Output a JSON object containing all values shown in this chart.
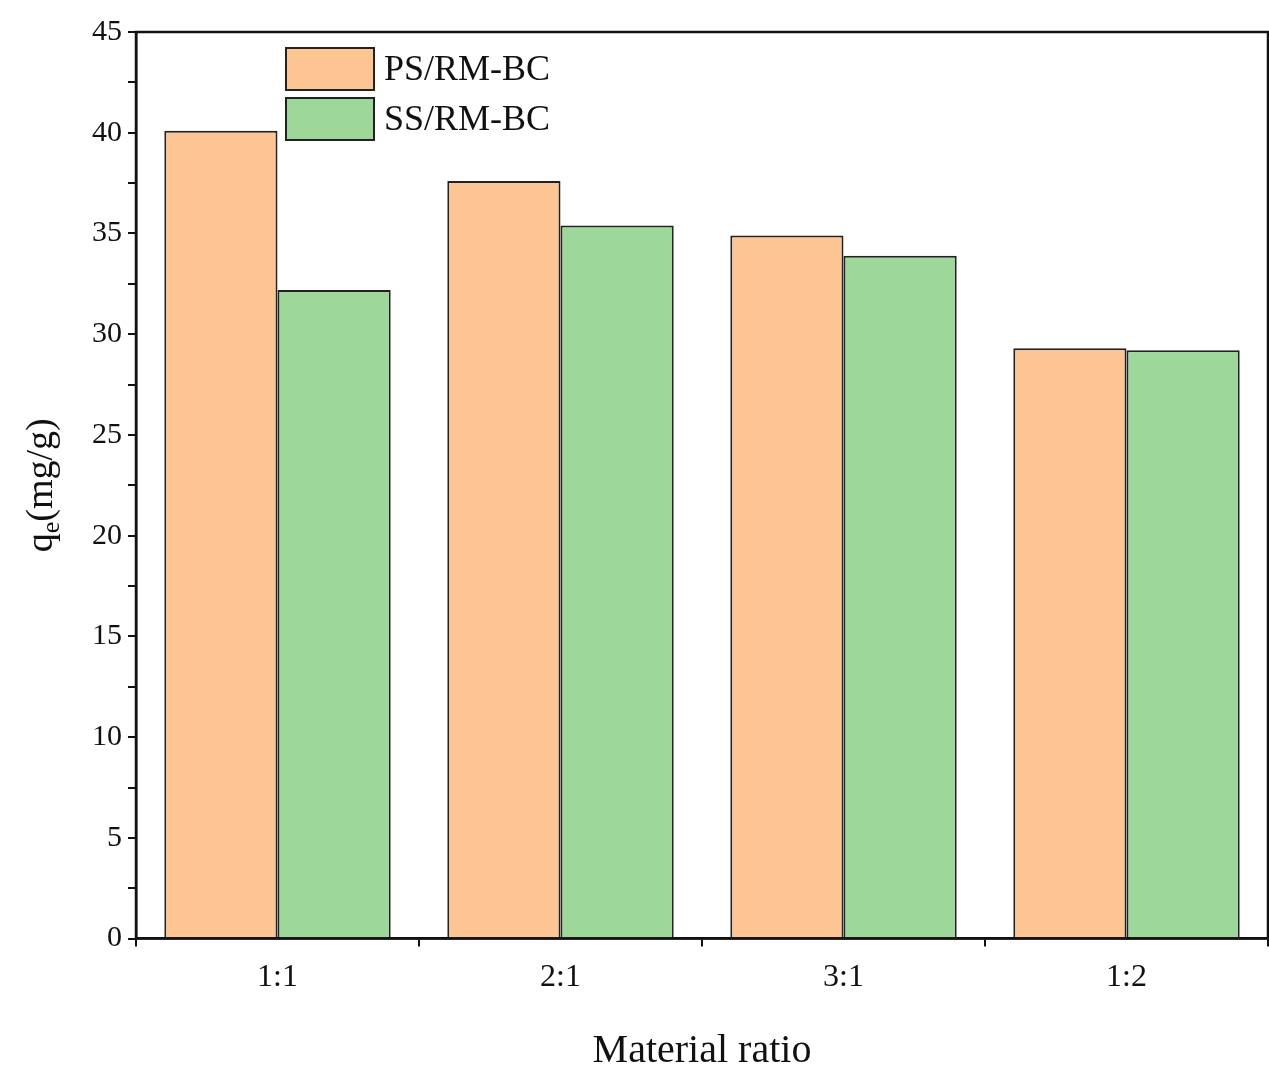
{
  "chart_data": {
    "type": "bar",
    "xlabel": "Material ratio",
    "ylabel": "q$_{e}$(mg/g)",
    "categories": [
      "1:1",
      "2:1",
      "3:1",
      "1:2"
    ],
    "series": [
      {
        "name": "PS/RM-BC",
        "color": "#fdc594",
        "values": [
          40.1,
          37.6,
          34.9,
          29.3
        ]
      },
      {
        "name": "SS/RM-BC",
        "color": "#9ed79a",
        "values": [
          32.2,
          35.4,
          33.9,
          29.2
        ]
      }
    ],
    "ylim": [
      0,
      45
    ],
    "yticks": [
      0,
      {
        "value": 2.5,
        "label": null
      },
      5,
      {
        "value": 7.5,
        "label": null
      },
      10,
      {
        "value": 12.5,
        "label": null
      },
      15,
      {
        "value": 17.5,
        "label": null
      },
      20,
      {
        "value": 22.5,
        "label": null
      },
      25,
      {
        "value": 27.5,
        "label": null
      },
      30,
      {
        "value": 32.5,
        "label": null
      },
      35,
      {
        "value": 37.5,
        "label": null
      },
      40,
      {
        "value": 42.5,
        "label": null
      },
      45
    ],
    "grid": false,
    "legend": "top left"
  }
}
